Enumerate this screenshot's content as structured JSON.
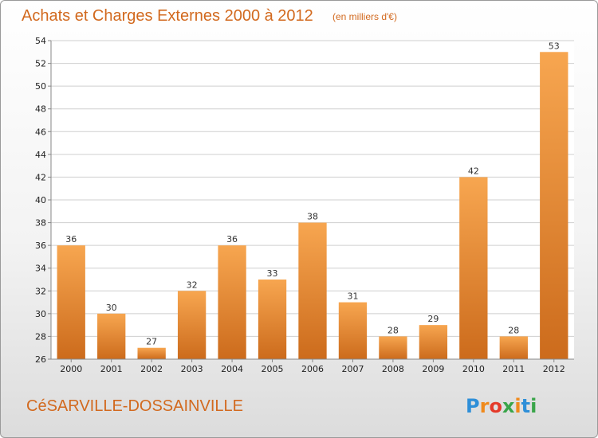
{
  "chart_data": {
    "type": "bar",
    "title": "Achats et Charges Externes 2000 à 2012",
    "subtitle": "(en milliers d'€)",
    "xlabel": "",
    "ylabel": "",
    "categories": [
      "2000",
      "2001",
      "2002",
      "2003",
      "2004",
      "2005",
      "2006",
      "2007",
      "2008",
      "2009",
      "2010",
      "2011",
      "2012"
    ],
    "values": [
      36,
      30,
      27,
      32,
      36,
      33,
      38,
      31,
      28,
      29,
      42,
      28,
      53
    ],
    "ylim": [
      26,
      54
    ],
    "yticks": [
      26,
      28,
      30,
      32,
      34,
      36,
      38,
      40,
      42,
      44,
      46,
      48,
      50,
      52,
      54
    ],
    "grid": true,
    "legend": "none",
    "bar_color": "#f0a050"
  },
  "commune": "CéSARVILLE-DOSSAINVILLE",
  "brand": {
    "text": "Proxiti",
    "letter_colors": [
      "#2e8fd8",
      "#f08a1c",
      "#e43a2a",
      "#3aa54a",
      "#f08a1c",
      "#2e8fd8",
      "#3aa54a"
    ]
  }
}
